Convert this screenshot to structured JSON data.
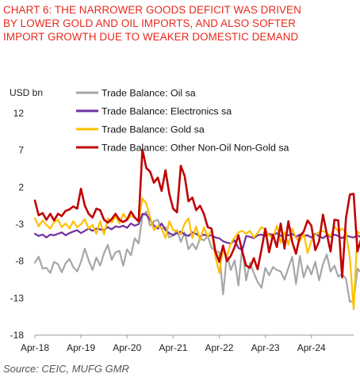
{
  "title_lines": [
    "CHART 6: THE NARROWER GOODS DEFICIT WAS DRIVEN",
    "BY LOWER GOLD AND OIL IMPORTS, AND ALSO SOFTER",
    "IMPORT GROWTH DUE TO WEAKER DOMESTIC DEMAND"
  ],
  "source": "Source: CEIC, MUFG GMR",
  "chart_data": {
    "type": "line",
    "title": "CHART 6: THE NARROWER GOODS DEFICIT WAS DRIVEN BY LOWER GOLD AND OIL IMPORTS, AND ALSO SOFTER IMPORT GROWTH DUE TO WEAKER DOMESTIC DEMAND",
    "ylabel": "USD bn",
    "ylim": [
      -18,
      12
    ],
    "yticks": [
      12,
      7,
      2,
      -3,
      -8,
      -13,
      -18
    ],
    "xlim": [
      "2018-04",
      "2025-03"
    ],
    "xticks": [
      "Apr-18",
      "Apr-19",
      "Apr-20",
      "Apr-21",
      "Apr-22",
      "Apr-23",
      "Apr-24"
    ],
    "grid": false,
    "legend_position": "top-left",
    "start": "2018-04",
    "series": [
      {
        "name": "Trade Balance: Oil sa",
        "color": "#a6a6a6",
        "values": [
          -8.2,
          -7.4,
          -9.0,
          -8.9,
          -9.6,
          -8.1,
          -8.4,
          -9.5,
          -8.3,
          -7.7,
          -8.8,
          -9.4,
          -8.1,
          -6.3,
          -7.9,
          -9.2,
          -7.5,
          -8.6,
          -6.9,
          -5.8,
          -7.8,
          -6.8,
          -6.6,
          -8.6,
          -6.4,
          -7.2,
          -4.9,
          -5.6,
          -1.9,
          -1.3,
          -3.2,
          -2.6,
          -2.4,
          -3.7,
          -3.4,
          -4.8,
          -4.5,
          -3.8,
          -5.4,
          -4.1,
          -6.4,
          -5.6,
          -6.4,
          -4.9,
          -5.2,
          -4.6,
          -6.2,
          -6.6,
          -6.8,
          -12.5,
          -7.1,
          -9.2,
          -7.9,
          -11.3,
          -6.1,
          -10.6,
          -8.2,
          -9.6,
          -10.8,
          -11.6,
          -8.9,
          -9.9,
          -8.8,
          -9.2,
          -9.4,
          -10.5,
          -8.9,
          -7.4,
          -11.1,
          -7.3,
          -10.2,
          -8.6,
          -9.8,
          -8.1,
          -10.6,
          -8.4,
          -7.1,
          -9.4,
          -8.6,
          -10.1,
          -9.7,
          -10.4,
          -13.5,
          -13.4,
          -9.0,
          -9.6,
          -6.9
        ]
      },
      {
        "name": "Trade Balance: Electronics sa",
        "color": "#7030a0",
        "values": [
          -4.3,
          -4.6,
          -4.4,
          -4.8,
          -4.4,
          -4.5,
          -4.3,
          -4.1,
          -4.5,
          -4.2,
          -4.0,
          -3.8,
          -4.2,
          -3.9,
          -3.6,
          -3.9,
          -3.6,
          -3.7,
          -3.8,
          -3.4,
          -3.7,
          -3.3,
          -3.4,
          -3.2,
          -3.5,
          -2.9,
          -3.2,
          -3.0,
          -1.6,
          -1.7,
          -2.4,
          -3.2,
          -3.6,
          -2.9,
          -3.8,
          -4.2,
          -4.5,
          -4.2,
          -4.0,
          -4.4,
          -4.6,
          -4.1,
          -4.3,
          -4.7,
          -4.4,
          -4.6,
          -4.5,
          -4.8,
          -4.9,
          -5.3,
          -5.5,
          -5.6,
          -5.2,
          -6.2,
          -6.5,
          -4.6,
          -4.7,
          -4.9,
          -4.5,
          -4.4,
          -4.6,
          -4.3,
          -4.5,
          -4.2,
          -4.6,
          -4.4,
          -4.5,
          -4.3,
          -4.7,
          -4.4,
          -4.6,
          -4.5,
          -4.8,
          -4.3,
          -4.6,
          -4.9,
          -4.5,
          -4.7,
          -4.4,
          -4.6,
          -4.9,
          -4.5,
          -4.7,
          -4.8,
          -4.5,
          -4.8,
          -4.7
        ]
      },
      {
        "name": "Trade Balance: Gold sa",
        "color": "#ffc000",
        "values": [
          -2.2,
          -3.3,
          -2.5,
          -3.1,
          -3.6,
          -2.7,
          -2.4,
          -3.4,
          -2.9,
          -3.6,
          -2.6,
          -3.4,
          -3.0,
          -2.3,
          -3.6,
          -3.1,
          -4.3,
          -2.6,
          -4.4,
          -2.2,
          -2.8,
          -1.9,
          -2.9,
          -1.6,
          -2.4,
          -1.9,
          -2.1,
          -2.7,
          0.5,
          -0.2,
          -2.0,
          -3.8,
          -3.2,
          -3.6,
          -4.9,
          -2.6,
          -3.8,
          -3.9,
          -4.4,
          -2.9,
          -2.2,
          -4.9,
          -3.3,
          -5.2,
          -3.4,
          -4.7,
          -3.8,
          -7.4,
          -9.6,
          -6.2,
          -7.3,
          -5.6,
          -4.8,
          -4.1,
          -3.9,
          -4.3,
          -3.9,
          -4.8,
          -4.2,
          -3.4,
          -3.8,
          -4.5,
          -4.9,
          -3.2,
          -5.5,
          -4.1,
          -5.8,
          -3.6,
          -4.9,
          -5.3,
          -4.3,
          -6.9,
          -5.2,
          -4.4,
          -4.1,
          -3.9,
          -4.2,
          -4.6,
          -3.3,
          -4.0,
          -3.6,
          -4.1,
          -7.5,
          -14.5,
          -4.0,
          -4.4,
          -0.8
        ]
      },
      {
        "name": "Trade Balance: Other Non-Oil Non-Gold sa",
        "color": "#c00000",
        "values": [
          0.2,
          -1.8,
          -1.5,
          -2.4,
          -1.6,
          -2.5,
          -1.6,
          -1.9,
          -1.2,
          -1.0,
          -0.6,
          -0.9,
          1.8,
          -0.5,
          -1.6,
          -2.1,
          -0.9,
          -1.1,
          -2.4,
          -2.8,
          -2.3,
          -1.6,
          -2.4,
          -2.7,
          -2.4,
          -1.3,
          -2.1,
          -2.6,
          7.1,
          4.6,
          4.1,
          2.6,
          3.3,
          1.5,
          4.3,
          1.1,
          -0.9,
          -1.4,
          4.9,
          3.5,
          0.1,
          0.6,
          -1.1,
          -0.5,
          -1.6,
          -3.4,
          -3.6,
          -6.7,
          -8.1,
          -5.9,
          -8.0,
          -7.3,
          -6.1,
          -4.5,
          -6.7,
          -8.6,
          -8.9,
          -7.6,
          -9.1,
          -6.4,
          -3.6,
          -6.8,
          -4.4,
          -6.1,
          -2.9,
          -6.3,
          -2.6,
          -5.4,
          -7.0,
          -4.6,
          -4.0,
          -2.5,
          -3.2,
          -6.5,
          -5.3,
          -1.7,
          -4.3,
          -6.7,
          -2.4,
          -2.5,
          -10.2,
          -2.2,
          1.0,
          1.1,
          -6.7,
          -4.9,
          -3.8
        ]
      }
    ]
  }
}
